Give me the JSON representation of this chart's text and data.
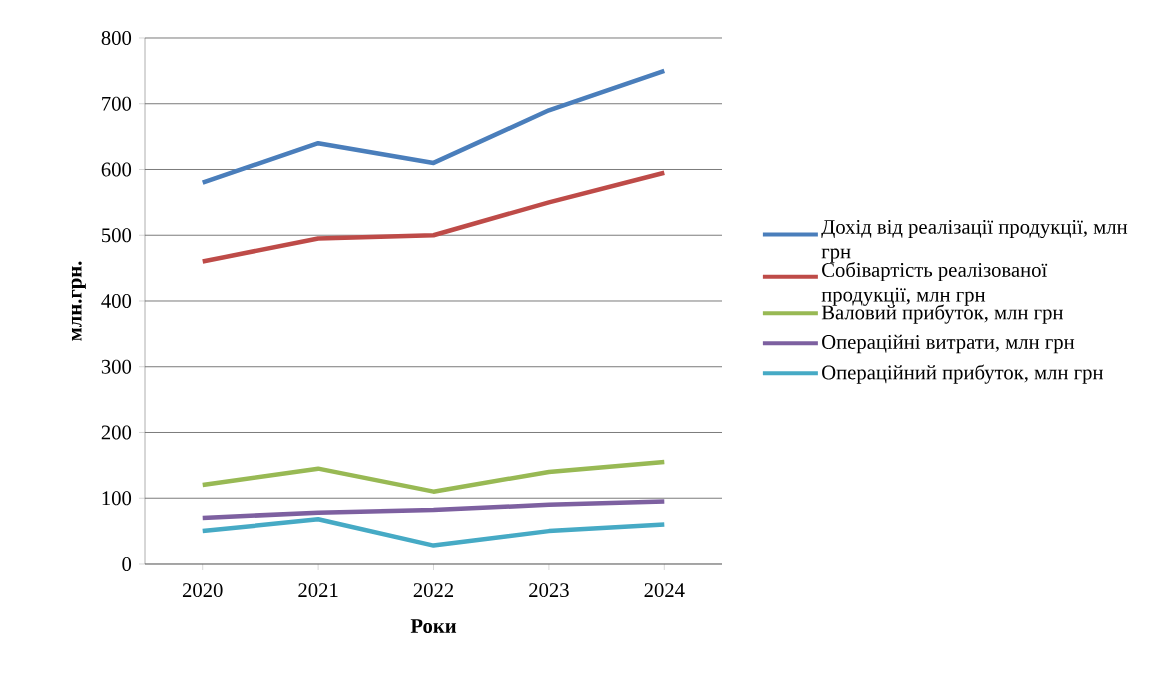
{
  "chart_data": {
    "type": "line",
    "xlabel": "Роки",
    "ylabel": "млн.грн.",
    "categories": [
      "2020",
      "2021",
      "2022",
      "2023",
      "2024"
    ],
    "series": [
      {
        "name": "Дохід від реалізації продукції, млн грн",
        "color": "#4a7ebb",
        "values": [
          580,
          640,
          610,
          690,
          750
        ]
      },
      {
        "name": "Собівартість реалізованої продукції, млн грн",
        "color": "#be4b48",
        "values": [
          460,
          495,
          500,
          550,
          595
        ]
      },
      {
        "name": "Валовий прибуток, млн грн",
        "color": "#98b954",
        "values": [
          120,
          145,
          110,
          140,
          155
        ]
      },
      {
        "name": "Операційні витрати, млн грн",
        "color": "#7d60a0",
        "values": [
          70,
          78,
          82,
          90,
          95
        ]
      },
      {
        "name": "Операційний прибуток, млн грн",
        "color": "#46aac5",
        "values": [
          50,
          68,
          28,
          50,
          60
        ]
      }
    ],
    "ylim": [
      0,
      800
    ],
    "yticks": [
      0,
      100,
      200,
      300,
      400,
      500,
      600,
      700,
      800
    ],
    "grid": "y",
    "legend": "right",
    "marker": "none",
    "line_style": "solid"
  }
}
